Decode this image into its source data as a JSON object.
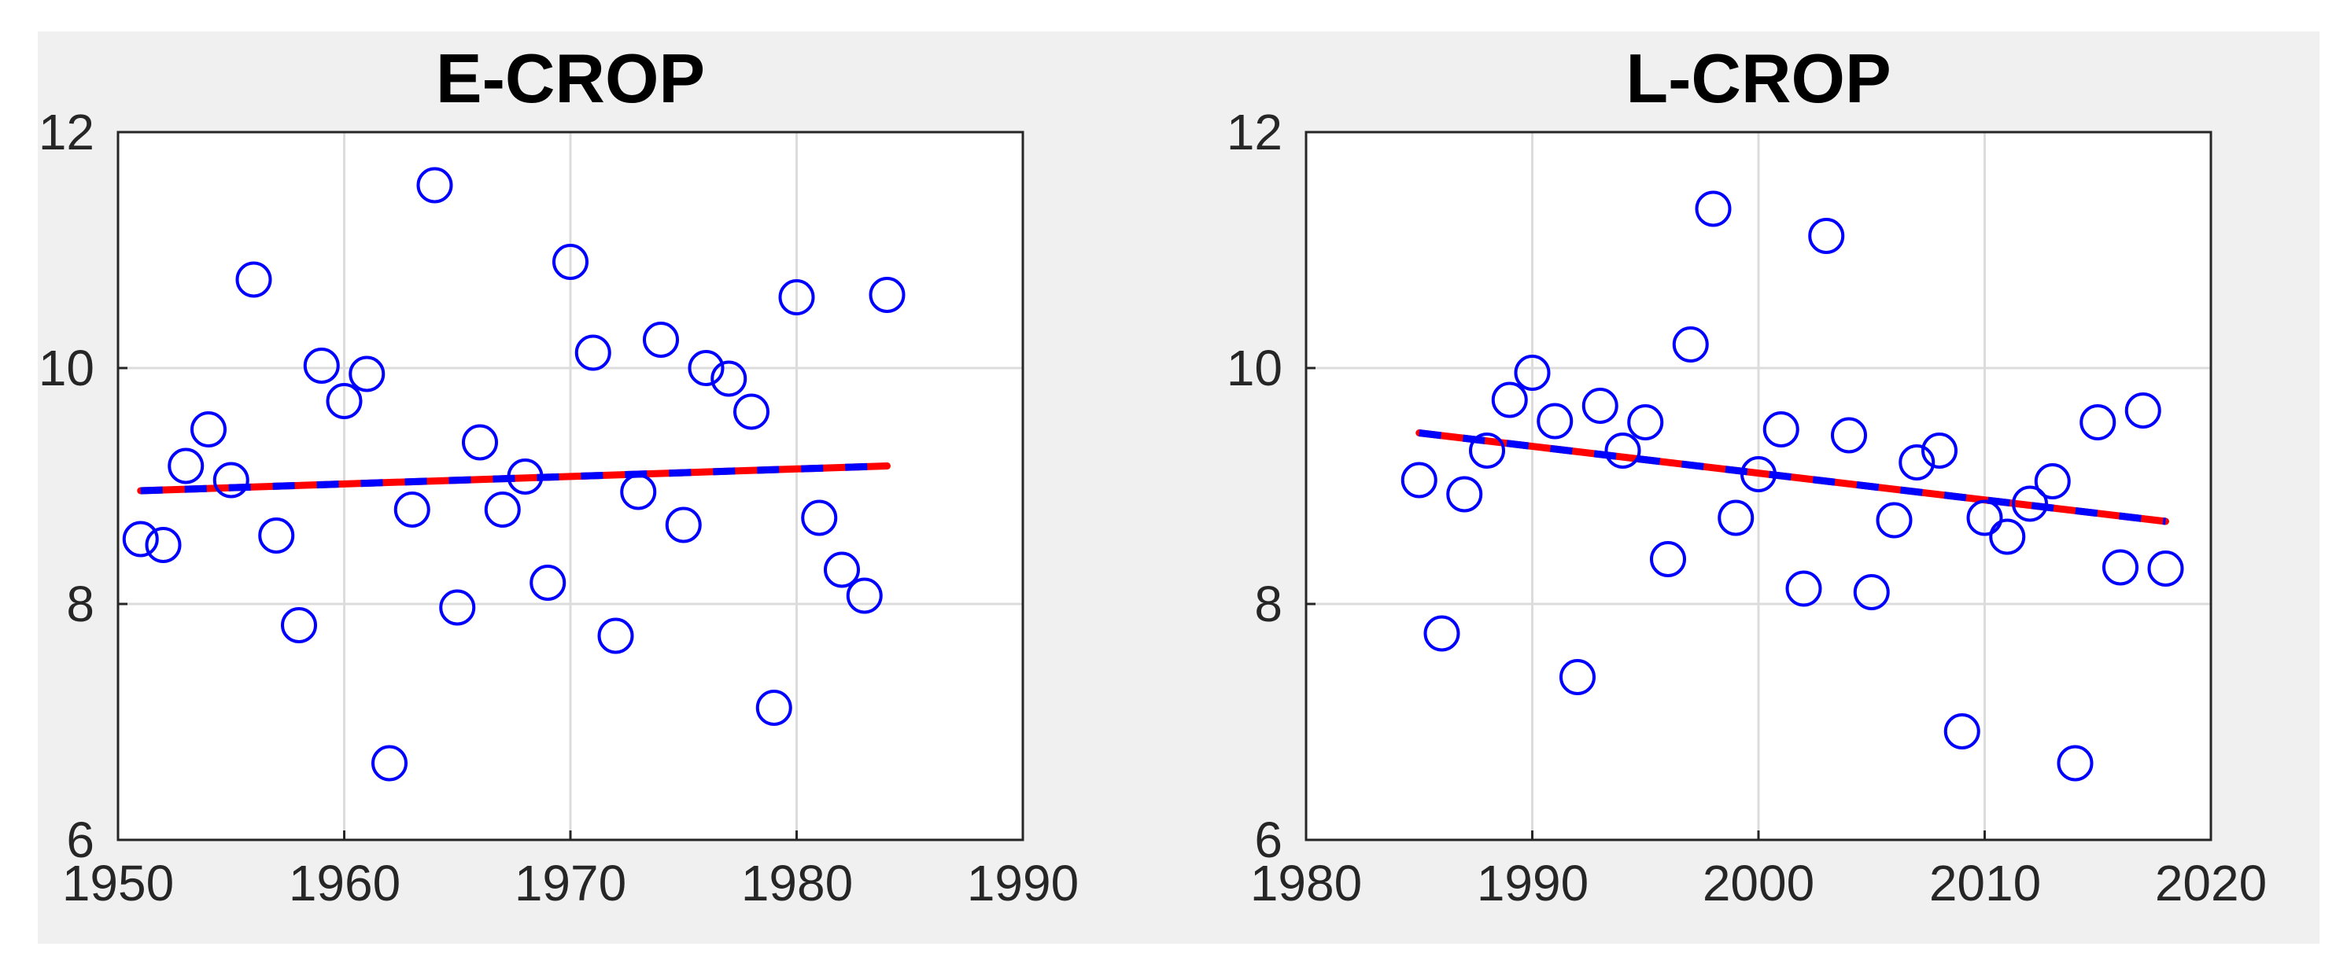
{
  "chart_data": [
    {
      "type": "scatter",
      "title": "E-CROP",
      "xlabel": "",
      "ylabel": "",
      "xlim": [
        1950,
        1990
      ],
      "ylim": [
        6,
        12
      ],
      "xticks": [
        "1950",
        "1960",
        "1970",
        "1980",
        "1990"
      ],
      "yticks": [
        "6",
        "8",
        "10",
        "12"
      ],
      "grid": true,
      "marker_color": "#0000ff",
      "fit_colors": [
        "#ff0000",
        "#0000ff"
      ],
      "x": [
        1951,
        1952,
        1953,
        1954,
        1955,
        1956,
        1957,
        1958,
        1959,
        1960,
        1961,
        1962,
        1963,
        1964,
        1965,
        1966,
        1967,
        1968,
        1969,
        1970,
        1971,
        1972,
        1973,
        1974,
        1975,
        1976,
        1977,
        1978,
        1979,
        1980,
        1981,
        1982,
        1983,
        1984
      ],
      "y": [
        8.55,
        8.5,
        9.17,
        9.48,
        9.05,
        10.75,
        8.58,
        7.82,
        10.02,
        9.72,
        9.95,
        6.65,
        8.8,
        11.55,
        7.97,
        9.37,
        8.8,
        9.08,
        8.18,
        10.9,
        10.13,
        7.73,
        8.95,
        10.24,
        8.67,
        10.0,
        9.91,
        9.63,
        7.12,
        10.6,
        8.73,
        8.29,
        8.07,
        10.62
      ],
      "trend": {
        "x": [
          1951,
          1984
        ],
        "y": [
          8.96,
          9.17
        ]
      }
    },
    {
      "type": "scatter",
      "title": "L-CROP",
      "xlabel": "",
      "ylabel": "",
      "xlim": [
        1980,
        2020
      ],
      "ylim": [
        6,
        12
      ],
      "xticks": [
        "1980",
        "1990",
        "2000",
        "2010",
        "2020"
      ],
      "yticks": [
        "6",
        "8",
        "10",
        "12"
      ],
      "grid": true,
      "marker_color": "#0000ff",
      "fit_colors": [
        "#ff0000",
        "#0000ff"
      ],
      "x": [
        1985,
        1986,
        1987,
        1988,
        1989,
        1990,
        1991,
        1992,
        1993,
        1994,
        1995,
        1996,
        1997,
        1998,
        1999,
        2000,
        2001,
        2002,
        2003,
        2004,
        2005,
        2006,
        2007,
        2008,
        2009,
        2010,
        2011,
        2012,
        2013,
        2014,
        2015,
        2016,
        2017,
        2018
      ],
      "y": [
        9.05,
        7.75,
        8.93,
        9.3,
        9.73,
        9.96,
        9.55,
        7.38,
        9.68,
        9.3,
        9.54,
        8.38,
        10.2,
        11.35,
        8.73,
        9.1,
        9.48,
        8.13,
        11.12,
        9.43,
        8.1,
        8.71,
        9.2,
        9.3,
        6.92,
        8.73,
        8.57,
        8.85,
        9.04,
        6.65,
        9.54,
        8.31,
        9.64,
        8.3
      ],
      "trend": {
        "x": [
          1985,
          2018
        ],
        "y": [
          9.45,
          8.7
        ]
      }
    }
  ]
}
